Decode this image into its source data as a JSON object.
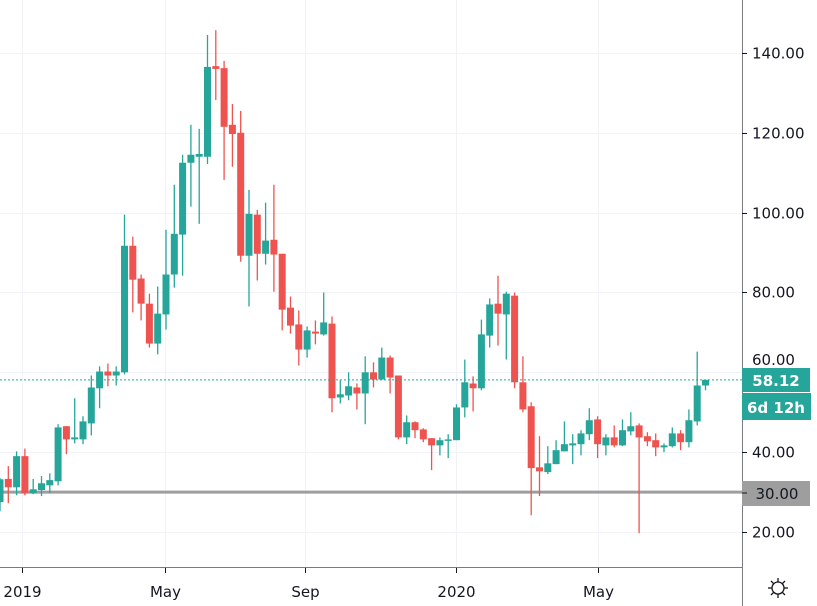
{
  "chart_data": {
    "type": "candlestick",
    "interval": "weekly",
    "y_axis": {
      "ticks": [
        "20.00",
        "40.00",
        "60.00",
        "80.00",
        "100.00",
        "120.00",
        "140.00"
      ],
      "tick_values": [
        20,
        40,
        60,
        80,
        100,
        120,
        140
      ],
      "range": [
        15,
        148
      ],
      "side": "right"
    },
    "x_axis": {
      "ticks": [
        "2019",
        "May",
        "Sep",
        "2020",
        "May"
      ]
    },
    "grid": true,
    "colors": {
      "up": "#26a69a",
      "down": "#ef5350",
      "horizontal_line": "#9e9e9e",
      "background": "#ffffff"
    },
    "last_price": {
      "label": "58.12",
      "value": 58.12,
      "countdown": "6d 12h",
      "color": "#26a69a"
    },
    "horizontal_line": {
      "label": "30.00",
      "value": 30
    },
    "ohlc_columns": [
      "open",
      "high",
      "low",
      "close"
    ],
    "ohlc": [
      [
        27.5,
        33.5,
        25.2,
        33.2
      ],
      [
        33.3,
        36.5,
        27.2,
        31.2
      ],
      [
        31.2,
        40.2,
        29.2,
        39.0
      ],
      [
        39.0,
        40.9,
        29.2,
        29.7
      ],
      [
        29.7,
        33.3,
        29.5,
        30.7
      ],
      [
        30.5,
        34.0,
        29.0,
        32.2
      ],
      [
        31.7,
        34.7,
        29.7,
        33.0
      ],
      [
        32.7,
        47.0,
        31.7,
        46.2
      ],
      [
        46.5,
        46.5,
        39.5,
        43.2
      ],
      [
        43.2,
        53.5,
        42.2,
        43.7
      ],
      [
        43.2,
        49.0,
        42.0,
        47.7
      ],
      [
        47.2,
        59.2,
        44.2,
        56.2
      ],
      [
        56.0,
        61.5,
        51.0,
        60.2
      ],
      [
        60.2,
        62.2,
        56.5,
        59.2
      ],
      [
        59.2,
        61.5,
        56.7,
        60.2
      ],
      [
        60.0,
        99.5,
        59.5,
        91.7
      ],
      [
        91.7,
        94.0,
        75.0,
        83.2
      ],
      [
        83.5,
        84.5,
        73.0,
        77.2
      ],
      [
        77.2,
        79.7,
        66.2,
        67.2
      ],
      [
        67.2,
        81.5,
        64.5,
        74.7
      ],
      [
        74.5,
        95.7,
        70.7,
        84.5
      ],
      [
        84.5,
        107.0,
        81.2,
        94.7
      ],
      [
        94.5,
        114.5,
        84.2,
        112.5
      ],
      [
        112.5,
        122.0,
        101.5,
        114.5
      ],
      [
        114.0,
        121.0,
        97.2,
        114.7
      ],
      [
        114.0,
        144.5,
        112.2,
        136.5
      ],
      [
        136.7,
        145.7,
        128.2,
        136.0
      ],
      [
        136.2,
        138.0,
        108.2,
        121.5
      ],
      [
        122.0,
        127.2,
        111.5,
        119.7
      ],
      [
        120.0,
        125.5,
        87.7,
        89.2
      ],
      [
        89.2,
        105.7,
        76.5,
        99.7
      ],
      [
        99.5,
        100.7,
        83.0,
        89.7
      ],
      [
        89.7,
        102.5,
        87.0,
        93.0
      ],
      [
        93.2,
        107.0,
        80.2,
        89.5
      ],
      [
        89.7,
        89.7,
        70.5,
        75.7
      ],
      [
        76.2,
        79.0,
        69.7,
        71.7
      ],
      [
        72.0,
        75.5,
        61.7,
        65.7
      ],
      [
        65.7,
        71.5,
        63.7,
        70.5
      ],
      [
        70.2,
        73.0,
        67.0,
        69.7
      ],
      [
        69.5,
        80.0,
        69.2,
        72.5
      ],
      [
        72.2,
        74.0,
        50.0,
        53.5
      ],
      [
        53.7,
        58.0,
        52.2,
        54.5
      ],
      [
        54.2,
        60.0,
        53.0,
        56.5
      ],
      [
        56.2,
        57.2,
        50.7,
        54.7
      ],
      [
        54.7,
        64.0,
        47.0,
        60.0
      ],
      [
        60.0,
        62.5,
        56.2,
        58.2
      ],
      [
        58.2,
        66.2,
        58.2,
        63.7
      ],
      [
        63.7,
        64.2,
        54.7,
        58.7
      ],
      [
        59.2,
        59.2,
        43.2,
        43.7
      ],
      [
        43.7,
        49.2,
        42.0,
        47.5
      ],
      [
        47.5,
        47.7,
        43.5,
        45.5
      ],
      [
        45.7,
        46.0,
        42.5,
        43.2
      ],
      [
        43.5,
        43.5,
        35.5,
        41.7
      ],
      [
        41.7,
        43.7,
        39.2,
        43.0
      ],
      [
        43.0,
        44.5,
        38.5,
        43.2
      ],
      [
        43.0,
        52.0,
        43.0,
        51.2
      ],
      [
        51.2,
        63.2,
        48.7,
        57.5
      ],
      [
        57.2,
        59.0,
        50.2,
        56.0
      ],
      [
        56.0,
        73.2,
        55.5,
        69.5
      ],
      [
        69.2,
        78.5,
        66.2,
        77.0
      ],
      [
        77.2,
        84.2,
        66.7,
        74.7
      ],
      [
        74.5,
        80.2,
        63.2,
        79.7
      ],
      [
        79.2,
        80.0,
        56.0,
        57.5
      ],
      [
        57.5,
        64.0,
        50.0,
        50.7
      ],
      [
        51.5,
        52.5,
        24.2,
        36.0
      ],
      [
        36.2,
        44.0,
        29.0,
        35.2
      ],
      [
        35.0,
        41.5,
        34.5,
        37.2
      ],
      [
        37.0,
        43.0,
        37.0,
        40.5
      ],
      [
        40.2,
        47.7,
        40.2,
        42.0
      ],
      [
        41.7,
        44.5,
        37.0,
        42.2
      ],
      [
        42.0,
        45.5,
        39.2,
        44.7
      ],
      [
        44.5,
        51.0,
        43.0,
        48.0
      ],
      [
        48.2,
        49.0,
        38.5,
        42.0
      ],
      [
        41.7,
        44.5,
        39.2,
        43.7
      ],
      [
        43.7,
        46.7,
        41.2,
        41.7
      ],
      [
        41.7,
        48.2,
        41.5,
        45.5
      ],
      [
        45.2,
        50.0,
        44.2,
        46.5
      ],
      [
        46.7,
        47.2,
        19.7,
        43.7
      ],
      [
        44.0,
        45.0,
        41.5,
        42.7
      ],
      [
        43.0,
        44.7,
        39.0,
        41.2
      ],
      [
        41.2,
        42.2,
        40.0,
        41.7
      ],
      [
        41.5,
        46.2,
        41.2,
        44.7
      ],
      [
        44.7,
        45.5,
        40.5,
        42.5
      ],
      [
        42.5,
        50.7,
        41.2,
        48.0
      ],
      [
        47.7,
        65.2,
        46.7,
        56.7
      ],
      [
        56.7,
        58.2,
        55.5,
        58.12
      ]
    ]
  },
  "toolbar": {
    "settings_icon": "sun-gear-icon"
  }
}
